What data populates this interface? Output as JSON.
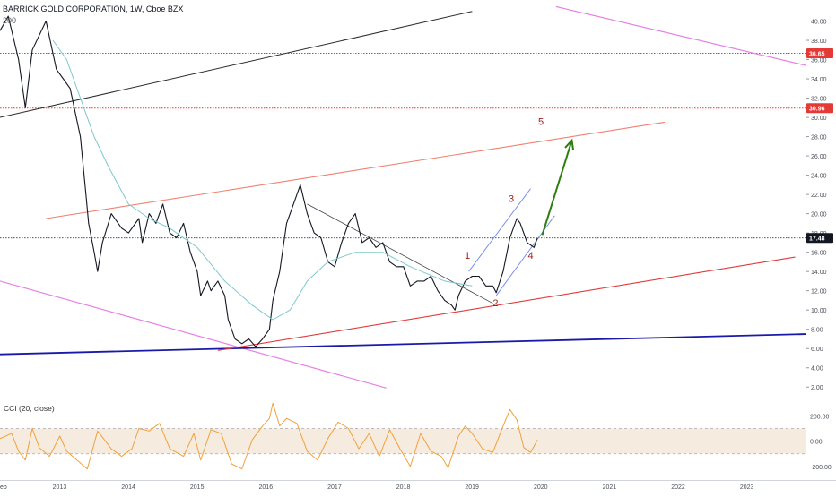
{
  "header": {
    "symbol_line": "BARRICK GOLD CORPORATION, 1W, Cboe BZX",
    "ma_label": "200"
  },
  "cci": {
    "label": "CCI (20, close)",
    "ticks": [
      "200.00",
      "0.00",
      "-200.00"
    ],
    "tick_values": [
      200,
      0,
      -200
    ],
    "band": [
      100,
      -100
    ]
  },
  "colors": {
    "price": "#131722",
    "ma": "#7ec8cc",
    "channel_upper": "#f08070",
    "channel_lower": "#e03c3c",
    "magenta": "#e680e6",
    "blue_support": "#1a1aa8",
    "wave_channel": "#7b8ff0",
    "green_arrow": "#2e7d0f",
    "level_red": "#e53935",
    "wave_label": "#9b1c1c",
    "cci_line": "#f2a03d",
    "cci_band": "#f5ecdf"
  },
  "chart_data": {
    "type": "line",
    "title": "BARRICK GOLD CORPORATION, 1W, Cboe BZX",
    "ylim": [
      1,
      42
    ],
    "y_ticks": [
      "2.00",
      "4.00",
      "6.00",
      "8.00",
      "10.00",
      "12.00",
      "14.00",
      "16.00",
      "18.00",
      "20.00",
      "22.00",
      "24.00",
      "26.00",
      "28.00",
      "30.00",
      "32.00",
      "34.00",
      "36.00",
      "38.00",
      "40.00"
    ],
    "x_ticks": [
      "eb",
      "2013",
      "2014",
      "2015",
      "2016",
      "2017",
      "2018",
      "2019",
      "2020",
      "2021",
      "2022",
      "2023"
    ],
    "x_tick_values": [
      2012.1,
      2013,
      2014,
      2015,
      2016,
      2017,
      2018,
      2019,
      2020,
      2021,
      2022,
      2023
    ],
    "xlim": [
      2012.13,
      2023.85
    ],
    "price_labels": [
      {
        "value": 36.65,
        "text": "36.65",
        "color": "#e53935"
      },
      {
        "value": 30.96,
        "text": "30.96",
        "color": "#e53935"
      },
      {
        "value": 17.48,
        "text": "17.48",
        "color": "#131722"
      }
    ],
    "series": [
      {
        "name": "price",
        "points": [
          [
            2012.13,
            39
          ],
          [
            2012.25,
            40.5
          ],
          [
            2012.4,
            36
          ],
          [
            2012.5,
            31
          ],
          [
            2012.6,
            37
          ],
          [
            2012.8,
            40
          ],
          [
            2012.95,
            35
          ],
          [
            2013.05,
            34
          ],
          [
            2013.15,
            33
          ],
          [
            2013.3,
            28
          ],
          [
            2013.38,
            22
          ],
          [
            2013.42,
            19
          ],
          [
            2013.5,
            16
          ],
          [
            2013.55,
            14
          ],
          [
            2013.62,
            17
          ],
          [
            2013.75,
            20
          ],
          [
            2013.9,
            18.5
          ],
          [
            2014.0,
            18
          ],
          [
            2014.15,
            19.5
          ],
          [
            2014.2,
            17
          ],
          [
            2014.3,
            20
          ],
          [
            2014.4,
            19
          ],
          [
            2014.5,
            21
          ],
          [
            2014.6,
            18
          ],
          [
            2014.7,
            17.5
          ],
          [
            2014.8,
            19
          ],
          [
            2014.9,
            16
          ],
          [
            2015.0,
            14
          ],
          [
            2015.05,
            11.5
          ],
          [
            2015.15,
            13
          ],
          [
            2015.2,
            12
          ],
          [
            2015.3,
            13
          ],
          [
            2015.4,
            11.5
          ],
          [
            2015.45,
            9
          ],
          [
            2015.55,
            7
          ],
          [
            2015.65,
            6.5
          ],
          [
            2015.75,
            7
          ],
          [
            2015.85,
            6.2
          ],
          [
            2015.95,
            7
          ],
          [
            2016.05,
            8
          ],
          [
            2016.1,
            11
          ],
          [
            2016.2,
            14
          ],
          [
            2016.3,
            19
          ],
          [
            2016.4,
            21
          ],
          [
            2016.5,
            23
          ],
          [
            2016.6,
            20
          ],
          [
            2016.7,
            18
          ],
          [
            2016.8,
            17.5
          ],
          [
            2016.9,
            15
          ],
          [
            2017.0,
            14.5
          ],
          [
            2017.1,
            17
          ],
          [
            2017.2,
            19
          ],
          [
            2017.3,
            20
          ],
          [
            2017.4,
            17
          ],
          [
            2017.5,
            17.5
          ],
          [
            2017.6,
            16.5
          ],
          [
            2017.7,
            17
          ],
          [
            2017.8,
            15
          ],
          [
            2017.9,
            14.5
          ],
          [
            2018.0,
            14.5
          ],
          [
            2018.1,
            12.5
          ],
          [
            2018.2,
            13
          ],
          [
            2018.3,
            13
          ],
          [
            2018.4,
            13.5
          ],
          [
            2018.5,
            12
          ],
          [
            2018.6,
            11
          ],
          [
            2018.7,
            10.5
          ],
          [
            2018.75,
            10
          ],
          [
            2018.8,
            11.5
          ],
          [
            2018.9,
            13
          ],
          [
            2019.0,
            13.5
          ],
          [
            2019.1,
            13.5
          ],
          [
            2019.2,
            12.5
          ],
          [
            2019.3,
            12.5
          ],
          [
            2019.35,
            11.8
          ],
          [
            2019.45,
            14
          ],
          [
            2019.55,
            17.5
          ],
          [
            2019.65,
            19.5
          ],
          [
            2019.7,
            19
          ],
          [
            2019.8,
            17
          ],
          [
            2019.9,
            16.5
          ],
          [
            2019.95,
            17.48
          ]
        ]
      },
      {
        "name": "ma",
        "points": [
          [
            2012.9,
            38
          ],
          [
            2013.1,
            36
          ],
          [
            2013.3,
            32
          ],
          [
            2013.5,
            28
          ],
          [
            2013.7,
            25
          ],
          [
            2014.0,
            21
          ],
          [
            2014.3,
            19.5
          ],
          [
            2014.6,
            18.5
          ],
          [
            2015.0,
            16.5
          ],
          [
            2015.4,
            13
          ],
          [
            2015.8,
            10.5
          ],
          [
            2016.1,
            9
          ],
          [
            2016.35,
            10
          ],
          [
            2016.6,
            13
          ],
          [
            2016.9,
            15
          ],
          [
            2017.3,
            16
          ],
          [
            2017.7,
            16
          ],
          [
            2018.1,
            14.5
          ],
          [
            2018.6,
            13
          ],
          [
            2019.0,
            12.5
          ]
        ]
      }
    ],
    "cci_series": [
      [
        2012.13,
        20
      ],
      [
        2012.3,
        60
      ],
      [
        2012.4,
        -80
      ],
      [
        2012.5,
        -150
      ],
      [
        2012.6,
        100
      ],
      [
        2012.7,
        -50
      ],
      [
        2012.85,
        -120
      ],
      [
        2013.0,
        40
      ],
      [
        2013.1,
        -80
      ],
      [
        2013.25,
        -150
      ],
      [
        2013.4,
        -220
      ],
      [
        2013.55,
        80
      ],
      [
        2013.75,
        -60
      ],
      [
        2013.9,
        -120
      ],
      [
        2014.05,
        -60
      ],
      [
        2014.15,
        100
      ],
      [
        2014.3,
        80
      ],
      [
        2014.45,
        140
      ],
      [
        2014.6,
        -60
      ],
      [
        2014.8,
        -120
      ],
      [
        2014.95,
        60
      ],
      [
        2015.05,
        -150
      ],
      [
        2015.2,
        90
      ],
      [
        2015.35,
        60
      ],
      [
        2015.5,
        -180
      ],
      [
        2015.65,
        -220
      ],
      [
        2015.8,
        10
      ],
      [
        2015.95,
        120
      ],
      [
        2016.05,
        180
      ],
      [
        2016.1,
        300
      ],
      [
        2016.2,
        120
      ],
      [
        2016.3,
        180
      ],
      [
        2016.45,
        140
      ],
      [
        2016.6,
        -80
      ],
      [
        2016.75,
        -150
      ],
      [
        2016.9,
        20
      ],
      [
        2017.05,
        150
      ],
      [
        2017.2,
        100
      ],
      [
        2017.35,
        -60
      ],
      [
        2017.5,
        60
      ],
      [
        2017.65,
        -120
      ],
      [
        2017.8,
        90
      ],
      [
        2017.95,
        -60
      ],
      [
        2018.1,
        -200
      ],
      [
        2018.25,
        60
      ],
      [
        2018.4,
        -80
      ],
      [
        2018.55,
        -120
      ],
      [
        2018.65,
        -210
      ],
      [
        2018.8,
        40
      ],
      [
        2018.9,
        120
      ],
      [
        2019.0,
        60
      ],
      [
        2019.15,
        -60
      ],
      [
        2019.3,
        -90
      ],
      [
        2019.45,
        120
      ],
      [
        2019.55,
        250
      ],
      [
        2019.65,
        170
      ],
      [
        2019.75,
        -50
      ],
      [
        2019.85,
        -90
      ],
      [
        2019.95,
        10
      ]
    ],
    "drawings": {
      "red_levels": [
        36.65,
        30.96
      ],
      "current_level": 17.48,
      "black_trend": [
        [
          2012.13,
          30
        ],
        [
          2019.0,
          41
        ]
      ],
      "magenta_top": [
        [
          2020.22,
          41.5
        ],
        [
          2023.85,
          35.4
        ]
      ],
      "magenta_bottom": [
        [
          2012.13,
          13
        ],
        [
          2017.75,
          1.9
        ]
      ],
      "blue_support": [
        [
          2012.13,
          5.4
        ],
        [
          2023.85,
          7.5
        ]
      ],
      "channel_upper": [
        [
          2012.8,
          19.5
        ],
        [
          2021.8,
          29.5
        ]
      ],
      "channel_lower": [
        [
          2015.3,
          5.8
        ],
        [
          2023.7,
          15.5
        ]
      ],
      "black_wave_trend": [
        [
          2016.6,
          21
        ],
        [
          2019.3,
          10.7
        ]
      ],
      "wave_channel_upper": [
        [
          2018.95,
          14
        ],
        [
          2019.85,
          22.6
        ]
      ],
      "wave_channel_lower": [
        [
          2019.35,
          11.5
        ],
        [
          2020.2,
          19.8
        ]
      ],
      "green_arrow": [
        [
          2020.02,
          17.8
        ],
        [
          2020.45,
          27.6
        ]
      ]
    },
    "wave_labels": [
      {
        "text": "1",
        "x": 2018.93,
        "y": 15.3
      },
      {
        "text": "2",
        "x": 2019.34,
        "y": 10.4
      },
      {
        "text": "3",
        "x": 2019.57,
        "y": 21.2
      },
      {
        "text": "4",
        "x": 2019.85,
        "y": 15.3
      },
      {
        "text": "5",
        "x": 2020.0,
        "y": 29.2
      }
    ]
  }
}
